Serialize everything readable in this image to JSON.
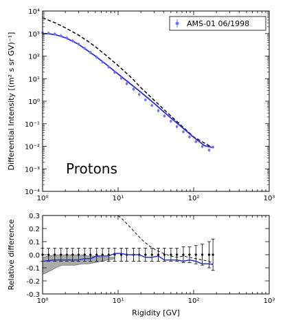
{
  "chart_data": [
    {
      "type": "line",
      "xscale": "log",
      "yscale": "log",
      "xlim": [
        1,
        1000
      ],
      "ylim": [
        0.0001,
        10000
      ],
      "ylabel": "Differential Intensity [(m² s sr GV)⁻¹]",
      "x_tick_labels": [
        "10⁰",
        "10¹",
        "10²",
        "10³"
      ],
      "y_tick_labels": [
        "10⁻⁴",
        "10⁻³",
        "10⁻²",
        "10⁻¹",
        "10⁰",
        "10¹",
        "10²",
        "10³",
        "10⁴"
      ],
      "annotation": "Protons",
      "legend": {
        "placement": "top-right",
        "entries": [
          "AMS-01 06/1998"
        ]
      },
      "series": [
        {
          "name": "AMS-01 06/1998",
          "style": "errorbar-points",
          "color": "#7070ff",
          "x": [
            1.0,
            1.2,
            1.45,
            1.75,
            2.1,
            2.5,
            3.0,
            3.6,
            4.3,
            5.2,
            6.2,
            7.5,
            9.0,
            11.0,
            13.0,
            16.0,
            19.0,
            23.0,
            28.0,
            34.0,
            41.0,
            50.0,
            60.0,
            73.0,
            88.0,
            107.0,
            130.0,
            160.0,
            180.0
          ],
          "y": [
            1100,
            1050,
            950,
            800,
            640,
            480,
            340,
            220,
            145,
            90,
            55,
            33,
            19,
            10.5,
            6.0,
            3.4,
            2.0,
            1.15,
            0.65,
            0.38,
            0.22,
            0.13,
            0.075,
            0.044,
            0.026,
            0.016,
            0.0098,
            0.0068,
            0.0092
          ]
        },
        {
          "name": "",
          "style": "solid",
          "color": "#2b2bd6",
          "x": [
            1.0,
            1.2,
            1.5,
            2.0,
            2.5,
            3.0,
            4.0,
            5.0,
            7.0,
            10.0,
            14.0,
            20.0,
            30.0,
            50.0,
            70.0,
            100.0,
            140.0,
            180.0
          ],
          "y": [
            1000,
            980,
            880,
            650,
            460,
            330,
            170,
            100,
            42,
            16,
            6.5,
            2.5,
            0.8,
            0.18,
            0.07,
            0.025,
            0.0105,
            0.0088
          ]
        },
        {
          "name": "",
          "style": "dashed",
          "color": "#000000",
          "x": [
            1.0,
            1.5,
            2.0,
            3.0,
            4.0,
            5.0,
            7.0,
            10.0,
            15.0,
            20.0,
            30.0,
            50.0,
            100.0,
            180.0
          ],
          "y": [
            5000,
            2900,
            1800,
            850,
            450,
            260,
            105,
            38,
            11,
            4.0,
            1.1,
            0.22,
            0.026,
            0.0085
          ]
        }
      ]
    },
    {
      "type": "line",
      "xscale": "log",
      "xlim": [
        1,
        1000
      ],
      "ylim": [
        -0.3,
        0.3
      ],
      "xlabel": "Rigidity [GV]",
      "ylabel": "Relative difference",
      "x_tick_labels": [
        "10⁰",
        "10¹",
        "10²",
        "10³"
      ],
      "y_tick_labels": [
        "-0.3",
        "-0.2",
        "-0.1",
        "0.0",
        "0.1",
        "0.2",
        "0.3"
      ],
      "band": {
        "color": "#aaaaaa",
        "x": [
          1.0,
          1.2,
          1.5,
          1.8,
          2.2,
          2.7,
          3.3,
          4.0,
          5.0,
          6.0,
          7.5,
          9.0
        ],
        "upper": [
          -0.02,
          -0.01,
          0.0,
          0.0,
          0.0,
          0.0,
          0.0,
          -0.01,
          -0.01,
          -0.02,
          -0.02,
          -0.02
        ],
        "lower": [
          -0.15,
          -0.13,
          -0.1,
          -0.08,
          -0.08,
          -0.08,
          -0.07,
          -0.07,
          -0.06,
          -0.05,
          -0.04,
          -0.03
        ]
      },
      "series": [
        {
          "name": "",
          "style": "errorbar-points",
          "color": "#000000",
          "x": [
            1.0,
            1.2,
            1.45,
            1.75,
            2.1,
            2.5,
            3.0,
            3.6,
            4.3,
            5.2,
            6.2,
            7.5,
            9.0,
            11.0,
            13.0,
            16.0,
            19.0,
            23.0,
            28.0,
            34.0,
            41.0,
            50.0,
            60.0,
            73.0,
            88.0,
            107.0,
            130.0,
            160.0,
            180.0
          ],
          "y": [
            0.0,
            0.0,
            0.0,
            0.0,
            0.0,
            0.0,
            0.0,
            0.0,
            0.0,
            0.0,
            0.0,
            0.0,
            0.0,
            0.0,
            0.0,
            0.0,
            0.0,
            0.0,
            0.0,
            0.0,
            0.0,
            0.0,
            0.0,
            0.0,
            0.0,
            0.0,
            0.0,
            0.0,
            0.0
          ],
          "err": [
            0.05,
            0.05,
            0.05,
            0.05,
            0.05,
            0.05,
            0.05,
            0.05,
            0.05,
            0.05,
            0.05,
            0.05,
            0.05,
            0.05,
            0.05,
            0.05,
            0.05,
            0.05,
            0.05,
            0.05,
            0.05,
            0.05,
            0.05,
            0.06,
            0.06,
            0.07,
            0.08,
            0.1,
            0.12
          ]
        },
        {
          "name": "",
          "style": "solid",
          "color": "#2b2bd6",
          "x": [
            1.0,
            1.2,
            1.45,
            1.75,
            2.1,
            2.5,
            3.0,
            3.6,
            4.3,
            5.2,
            6.2,
            7.5,
            9.0,
            11.0,
            13.0,
            16.0,
            19.0,
            23.0,
            28.0,
            34.0,
            41.0,
            50.0,
            60.0,
            73.0,
            88.0,
            107.0,
            130.0,
            160.0,
            180.0
          ],
          "y": [
            -0.05,
            -0.045,
            -0.04,
            -0.04,
            -0.04,
            -0.04,
            -0.04,
            -0.03,
            -0.03,
            -0.01,
            -0.01,
            -0.01,
            0.01,
            0.01,
            0.0,
            0.0,
            0.0,
            -0.02,
            -0.02,
            -0.01,
            -0.04,
            -0.04,
            -0.04,
            -0.05,
            -0.04,
            -0.05,
            -0.07,
            -0.07,
            -0.075
          ]
        },
        {
          "name": "",
          "style": "dashed",
          "color": "#000000",
          "x": [
            10.0,
            12.0,
            15.0,
            18.0,
            22.0,
            27.0,
            33.0,
            40.0,
            50.0,
            60.0,
            73.0,
            88.0,
            107.0,
            130.0,
            160.0,
            180.0
          ],
          "y": [
            0.3,
            0.26,
            0.2,
            0.15,
            0.1,
            0.06,
            0.03,
            0.01,
            -0.01,
            -0.02,
            -0.01,
            -0.02,
            -0.03,
            -0.04,
            -0.05,
            -0.07
          ]
        }
      ]
    }
  ]
}
